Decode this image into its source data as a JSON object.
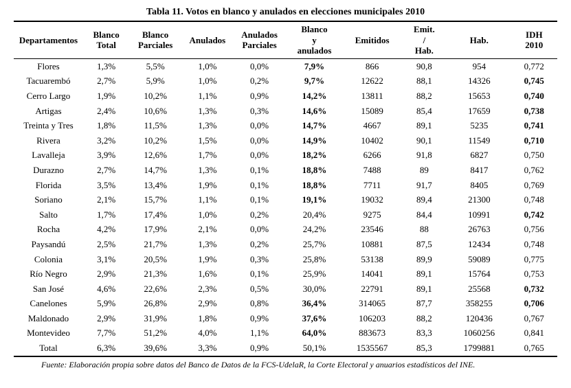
{
  "title": "Tabla 11. Votos en blanco y anulados en elecciones municipales 2010",
  "columns": [
    "Departamentos",
    "Blanco Total",
    "Blanco Parciales",
    "Anulados",
    "Anulados Parciales",
    "Blanco y anulados",
    "Emitidos",
    "Emit. / Hab.",
    "Hab.",
    "IDH 2010"
  ],
  "bold_cols": [
    false,
    false,
    false,
    false,
    false,
    true,
    false,
    false,
    false,
    true
  ],
  "rows": [
    {
      "dept": "Flores",
      "bt": "1,3%",
      "bp": "5,5%",
      "an": "1,0%",
      "ap": "0,0%",
      "bya": "7,9%",
      "em": "866",
      "eh": "90,8",
      "hab": "954",
      "idh": "0,772",
      "bold_bya": true,
      "bold_idh": false
    },
    {
      "dept": "Tacuarembó",
      "bt": "2,7%",
      "bp": "5,9%",
      "an": "1,0%",
      "ap": "0,2%",
      "bya": "9,7%",
      "em": "12622",
      "eh": "88,1",
      "hab": "14326",
      "idh": "0,745",
      "bold_bya": true,
      "bold_idh": true
    },
    {
      "dept": "Cerro Largo",
      "bt": "1,9%",
      "bp": "10,2%",
      "an": "1,1%",
      "ap": "0,9%",
      "bya": "14,2%",
      "em": "13811",
      "eh": "88,2",
      "hab": "15653",
      "idh": "0,740",
      "bold_bya": true,
      "bold_idh": true
    },
    {
      "dept": "Artigas",
      "bt": "2,4%",
      "bp": "10,6%",
      "an": "1,3%",
      "ap": "0,3%",
      "bya": "14,6%",
      "em": "15089",
      "eh": "85,4",
      "hab": "17659",
      "idh": "0,738",
      "bold_bya": true,
      "bold_idh": true
    },
    {
      "dept": "Treinta y Tres",
      "bt": "1,8%",
      "bp": "11,5%",
      "an": "1,3%",
      "ap": "0,0%",
      "bya": "14,7%",
      "em": "4667",
      "eh": "89,1",
      "hab": "5235",
      "idh": "0,741",
      "bold_bya": true,
      "bold_idh": true
    },
    {
      "dept": "Rivera",
      "bt": "3,2%",
      "bp": "10,2%",
      "an": "1,5%",
      "ap": "0,0%",
      "bya": "14,9%",
      "em": "10402",
      "eh": "90,1",
      "hab": "11549",
      "idh": "0,710",
      "bold_bya": true,
      "bold_idh": true
    },
    {
      "dept": "Lavalleja",
      "bt": "3,9%",
      "bp": "12,6%",
      "an": "1,7%",
      "ap": "0,0%",
      "bya": "18,2%",
      "em": "6266",
      "eh": "91,8",
      "hab": "6827",
      "idh": "0,750",
      "bold_bya": true,
      "bold_idh": false
    },
    {
      "dept": "Durazno",
      "bt": "2,7%",
      "bp": "14,7%",
      "an": "1,3%",
      "ap": "0,1%",
      "bya": "18,8%",
      "em": "7488",
      "eh": "89",
      "hab": "8417",
      "idh": "0,762",
      "bold_bya": true,
      "bold_idh": false
    },
    {
      "dept": "Florida",
      "bt": "3,5%",
      "bp": "13,4%",
      "an": "1,9%",
      "ap": "0,1%",
      "bya": "18,8%",
      "em": "7711",
      "eh": "91,7",
      "hab": "8405",
      "idh": "0,769",
      "bold_bya": true,
      "bold_idh": false
    },
    {
      "dept": "Soriano",
      "bt": "2,1%",
      "bp": "15,7%",
      "an": "1,1%",
      "ap": "0,1%",
      "bya": "19,1%",
      "em": "19032",
      "eh": "89,4",
      "hab": "21300",
      "idh": "0,748",
      "bold_bya": true,
      "bold_idh": false
    },
    {
      "dept": "Salto",
      "bt": "1,7%",
      "bp": "17,4%",
      "an": "1,0%",
      "ap": "0,2%",
      "bya": "20,4%",
      "em": "9275",
      "eh": "84,4",
      "hab": "10991",
      "idh": "0,742",
      "bold_bya": false,
      "bold_idh": true
    },
    {
      "dept": "Rocha",
      "bt": "4,2%",
      "bp": "17,9%",
      "an": "2,1%",
      "ap": "0,0%",
      "bya": "24,2%",
      "em": "23546",
      "eh": "88",
      "hab": "26763",
      "idh": "0,756",
      "bold_bya": false,
      "bold_idh": false
    },
    {
      "dept": "Paysandú",
      "bt": "2,5%",
      "bp": "21,7%",
      "an": "1,3%",
      "ap": "0,2%",
      "bya": "25,7%",
      "em": "10881",
      "eh": "87,5",
      "hab": "12434",
      "idh": "0,748",
      "bold_bya": false,
      "bold_idh": false
    },
    {
      "dept": "Colonia",
      "bt": "3,1%",
      "bp": "20,5%",
      "an": "1,9%",
      "ap": "0,3%",
      "bya": "25,8%",
      "em": "53138",
      "eh": "89,9",
      "hab": "59089",
      "idh": "0,775",
      "bold_bya": false,
      "bold_idh": false
    },
    {
      "dept": "Río Negro",
      "bt": "2,9%",
      "bp": "21,3%",
      "an": "1,6%",
      "ap": "0,1%",
      "bya": "25,9%",
      "em": "14041",
      "eh": "89,1",
      "hab": "15764",
      "idh": "0,753",
      "bold_bya": false,
      "bold_idh": false
    },
    {
      "dept": "San José",
      "bt": "4,6%",
      "bp": "22,6%",
      "an": "2,3%",
      "ap": "0,5%",
      "bya": "30,0%",
      "em": "22791",
      "eh": "89,1",
      "hab": "25568",
      "idh": "0,732",
      "bold_bya": false,
      "bold_idh": true
    },
    {
      "dept": "Canelones",
      "bt": "5,9%",
      "bp": "26,8%",
      "an": "2,9%",
      "ap": "0,8%",
      "bya": "36,4%",
      "em": "314065",
      "eh": "87,7",
      "hab": "358255",
      "idh": "0,706",
      "bold_bya": true,
      "bold_idh": true
    },
    {
      "dept": "Maldonado",
      "bt": "2,9%",
      "bp": "31,9%",
      "an": "1,8%",
      "ap": "0,9%",
      "bya": "37,6%",
      "em": "106203",
      "eh": "88,2",
      "hab": "120436",
      "idh": "0,767",
      "bold_bya": true,
      "bold_idh": false
    },
    {
      "dept": "Montevideo",
      "bt": "7,7%",
      "bp": "51,2%",
      "an": "4,0%",
      "ap": "1,1%",
      "bya": "64,0%",
      "em": "883673",
      "eh": "83,3",
      "hab": "1060256",
      "idh": "0,841",
      "bold_bya": true,
      "bold_idh": false
    },
    {
      "dept": "Total",
      "bt": "6,3%",
      "bp": "39,6%",
      "an": "3,3%",
      "ap": "0,9%",
      "bya": "50,1%",
      "em": "1535567",
      "eh": "85,3",
      "hab": "1799881",
      "idh": "0,765",
      "bold_bya": false,
      "bold_idh": false
    }
  ],
  "footnote": "Fuente: Elaboración propia sobre datos del Banco de Datos de la FCS-UdelaR, la Corte Electoral y anuarios estadísticos del INE."
}
